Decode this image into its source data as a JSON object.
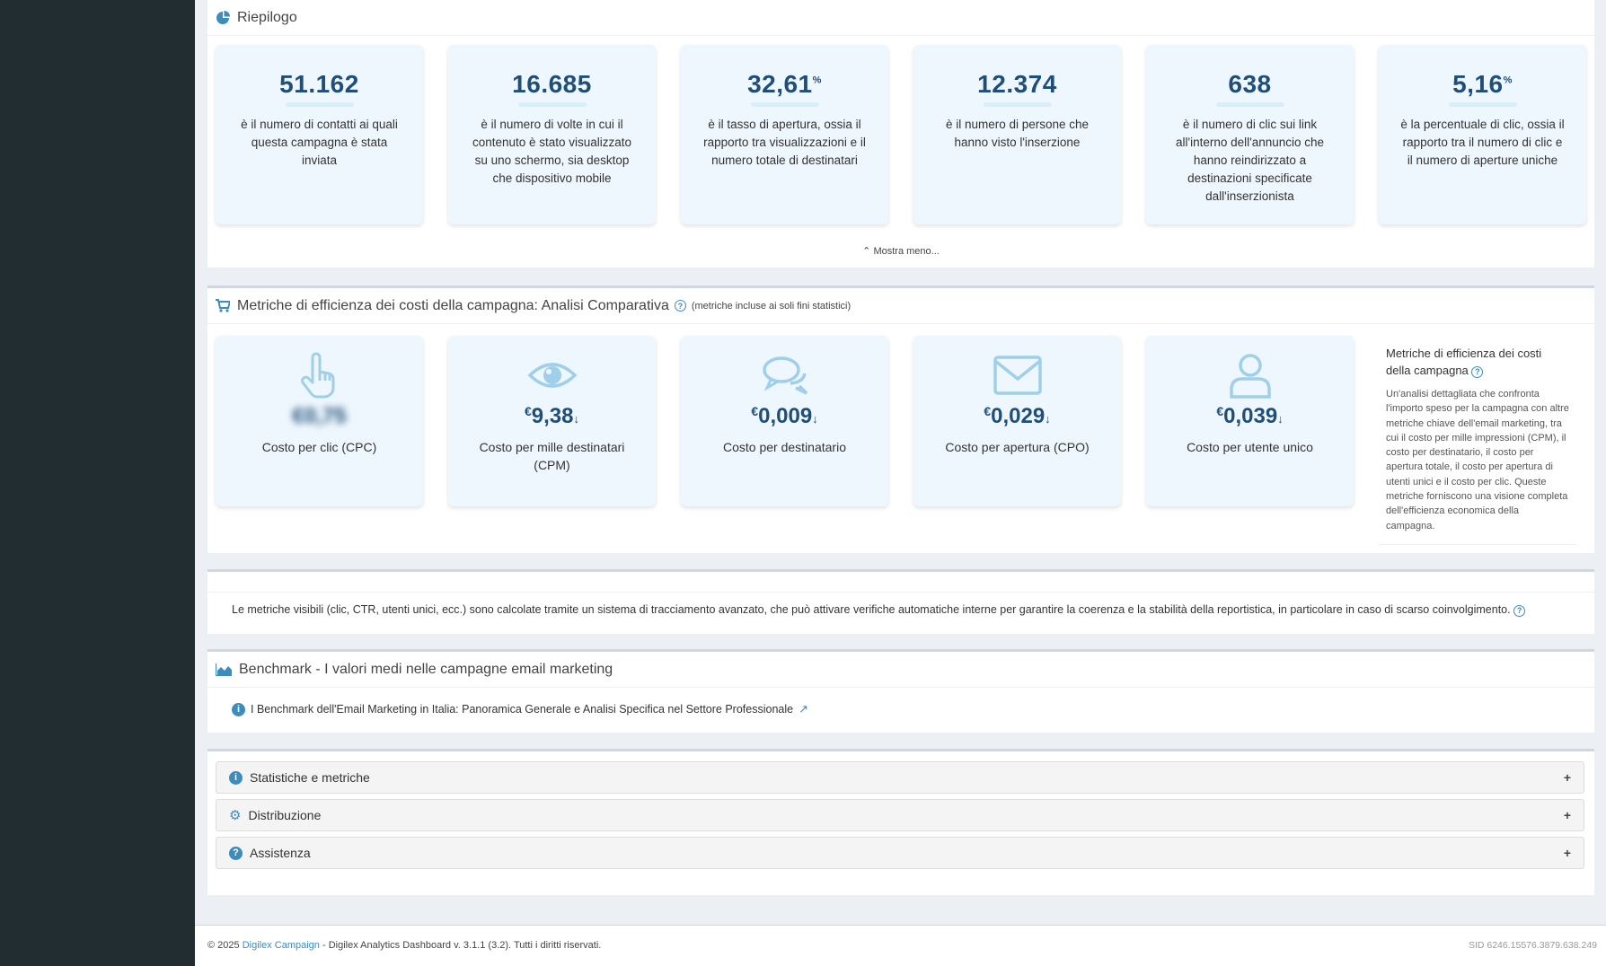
{
  "summary": {
    "title": "Riepilogo",
    "cards": [
      {
        "value": "51.162",
        "unit": "",
        "desc": "è il numero di contatti ai quali questa campagna è stata inviata"
      },
      {
        "value": "16.685",
        "unit": "",
        "desc": "è il numero di volte in cui il contenuto è stato visualizzato su uno schermo, sia desktop che dispositivo mobile"
      },
      {
        "value": "32,61",
        "unit": "%",
        "desc": "è il tasso di apertura, ossia il rapporto tra visualizzazioni e il numero totale di destinatari"
      },
      {
        "value": "12.374",
        "unit": "",
        "desc": "è il numero di persone che hanno visto l'inserzione"
      },
      {
        "value": "638",
        "unit": "",
        "desc": "è il numero di clic sui link all'interno dell'annuncio che hanno reindirizzato a destinazioni specificate dall'inserzionista"
      },
      {
        "value": "5,16",
        "unit": "%",
        "desc": "è la percentuale di clic, ossia il rapporto tra il numero di clic e il numero di aperture uniche"
      }
    ],
    "toggle_label": "Mostra meno..."
  },
  "efficiency": {
    "title": "Metriche di efficienza dei costi della campagna: Analisi Comparativa",
    "note": "(metriche incluse ai soli fini statistici)",
    "cards": [
      {
        "icon": "pointer-hand-icon",
        "currency": "",
        "value": "€0,75",
        "arrow": "",
        "blurred": true,
        "label": "Costo per clic (CPC)"
      },
      {
        "icon": "eye-icon",
        "currency": "€",
        "value": "9,38",
        "arrow": "↓",
        "blurred": false,
        "label": "Costo per mille destinatari (CPM)"
      },
      {
        "icon": "comments-icon",
        "currency": "€",
        "value": "0,009",
        "arrow": "↓",
        "blurred": false,
        "label": "Costo per destinatario"
      },
      {
        "icon": "envelope-icon",
        "currency": "€",
        "value": "0,029",
        "arrow": "↓",
        "blurred": false,
        "label": "Costo per apertura (CPO)"
      },
      {
        "icon": "user-icon",
        "currency": "€",
        "value": "0,039",
        "arrow": "↓",
        "blurred": false,
        "label": "Costo per utente unico"
      }
    ],
    "side_title": "Metriche di efficienza dei costi della campagna",
    "side_text": "Un'analisi dettagliata che confronta l'importo speso per la campagna con altre metriche chiave dell'email marketing, tra cui il costo per mille impressioni (CPM), il costo per destinatario, il costo per apertura totale, il costo per apertura di utenti unici e il costo per clic. Queste metriche forniscono una visione completa dell'efficienza economica della campagna."
  },
  "tracking_note": "Le metriche visibili (clic, CTR, utenti unici, ecc.) sono calcolate tramite un sistema di tracciamento avanzato, che può attivare verifiche automatiche interne per garantire la coerenza e la stabilità della reportistica, in particolare in caso di scarso coinvolgimento.",
  "benchmark": {
    "title": "Benchmark - I valori medi nelle campagne email marketing",
    "link": "I Benchmark dell'Email Marketing in Italia: Panoramica Generale e Analisi Specifica nel Settore Professionale"
  },
  "accordion": [
    {
      "icon": "info-icon",
      "label": "Statistiche e metriche"
    },
    {
      "icon": "gear-icon",
      "label": "Distribuzione"
    },
    {
      "icon": "question-icon",
      "label": "Assistenza"
    }
  ],
  "footer": {
    "copyright": "© 2025",
    "brand": "Digilex Campaign",
    "rest": " - Digilex Analytics Dashboard v. 3.1.1 (3.2). Tutti i diritti riservati.",
    "sid": "SID 6246.15576.3879.638.249"
  },
  "colors": {
    "accent": "#3c8dbc",
    "sidebar": "#222d32",
    "value": "#1f4e79",
    "card_bg": "#eef7fd"
  }
}
